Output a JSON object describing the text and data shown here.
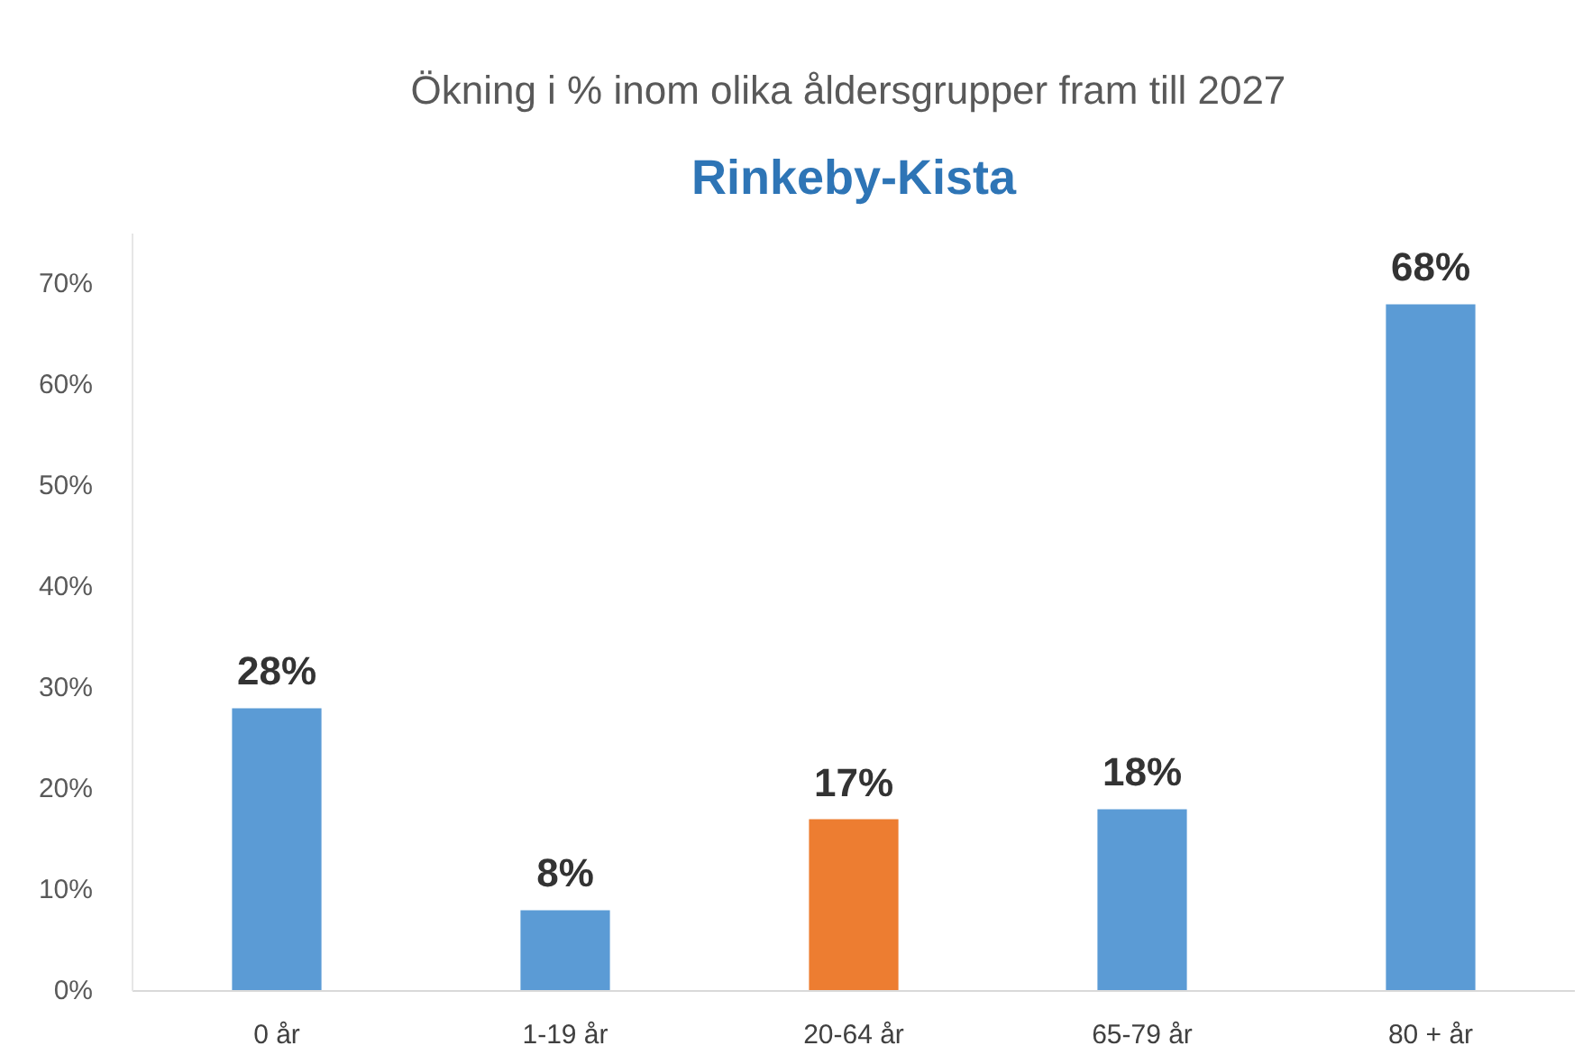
{
  "chart_data": {
    "type": "bar",
    "title": "Ökning i %  inom olika åldersgrupper fram till 2027",
    "subtitle": "Rinkeby-Kista",
    "categories": [
      "0 år",
      "1-19 år",
      "20-64 år",
      "65-79 år",
      "80 + år"
    ],
    "values": [
      28,
      8,
      17,
      18,
      68
    ],
    "colors": [
      "#5b9bd5",
      "#5b9bd5",
      "#ed7d31",
      "#5b9bd5",
      "#5b9bd5"
    ],
    "value_labels": [
      "28%",
      "8%",
      "17%",
      "18%",
      "68%"
    ],
    "ylim": [
      0,
      75
    ],
    "yticks": [
      {
        "value": 0,
        "label": "0%"
      },
      {
        "value": 10,
        "label": "10%"
      },
      {
        "value": 20,
        "label": "20%"
      },
      {
        "value": 30,
        "label": "30%"
      },
      {
        "value": 40,
        "label": "40%"
      },
      {
        "value": 50,
        "label": "50%"
      },
      {
        "value": 60,
        "label": "60%"
      },
      {
        "value": 70,
        "label": "70%"
      }
    ],
    "grid": false
  }
}
